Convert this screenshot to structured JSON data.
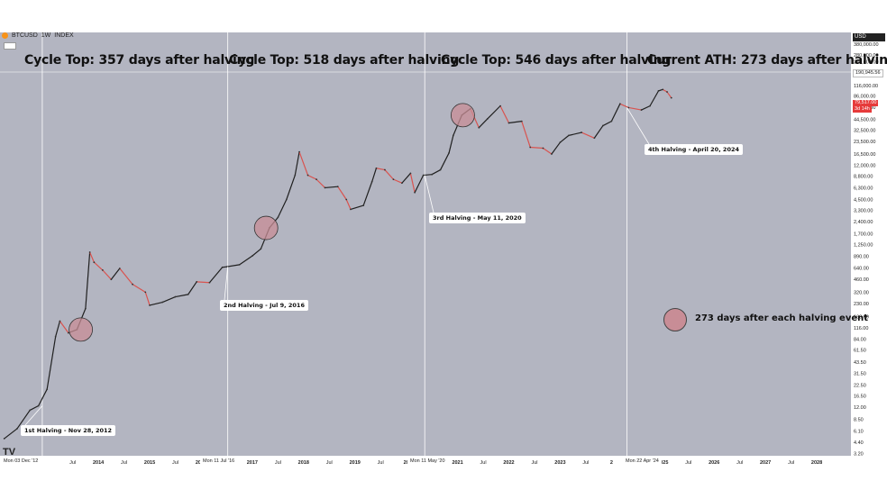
{
  "header": {
    "ticker": "BTCUSD",
    "interval": "1W",
    "type": "INDEX",
    "currency": "USD"
  },
  "titles": [
    "Cycle Top: 357 days after halving",
    "Cycle Top: 518 days after halving",
    "Cycle Top: 546 days after halving",
    "Current ATH: 273 days after halving"
  ],
  "halving_labels": [
    "1st Halving - Nov 28, 2012",
    "2nd Halving - Jul 9, 2016",
    "3rd Halving - May 11, 2020",
    "4th Halving - April 20, 2024"
  ],
  "legend": {
    "text": "273 days after each halving event",
    "color": "#c88d96"
  },
  "x_badges": [
    "Mon 03 Dec '12",
    "Mon 11 Jul '16",
    "Mon 11 May '20",
    "Mon 22 Apr '24"
  ],
  "price_tags": {
    "current_price": "79,517.00",
    "countdown": "3d 14h",
    "ath_marker": "190,945.56"
  },
  "colors": {
    "background": "#b3b5c1",
    "up": "#1f1f1f",
    "down": "#d9534f",
    "circle_fill": "#c88d96"
  },
  "chart_data": {
    "type": "line",
    "title": "",
    "xlabel": "",
    "ylabel": "",
    "y_scale": "log",
    "ylim": [
      3.0,
      530000
    ],
    "xlim": [
      "2012-02",
      "2028-09"
    ],
    "y_ticks": [
      "530,000.00",
      "380,000.00",
      "280,000.00",
      "230,000.00",
      "160,000.00",
      "116,000.00",
      "86,000.00",
      "62,500.00",
      "44,500.00",
      "32,500.00",
      "23,500.00",
      "16,500.00",
      "12,000.00",
      "8,800.00",
      "6,300.00",
      "4,500.00",
      "3,300.00",
      "2,400.00",
      "1,700.00",
      "1,250.00",
      "890.00",
      "640.00",
      "460.00",
      "320.00",
      "230.00",
      "160.00",
      "116.00",
      "84.00",
      "61.50",
      "43.50",
      "31.50",
      "22.50",
      "16.50",
      "12.00",
      "8.50",
      "6.10",
      "4.40",
      "3.20"
    ],
    "x_ticks": [
      "Jul",
      "2014",
      "Jul",
      "2015",
      "Jul",
      "2016",
      "2017",
      "Jul",
      "2018",
      "Jul",
      "2019",
      "Jul",
      "20",
      "2021",
      "Jul",
      "2022",
      "Jul",
      "2023",
      "Jul",
      "2",
      "Jul",
      "2025",
      "Jul",
      "2026",
      "Jul",
      "2027",
      "Jul",
      "2028"
    ],
    "series": [
      {
        "x": [
          "2012-03",
          "2012-06",
          "2012-09",
          "2012-11",
          "2013-01",
          "2013-03",
          "2013-04",
          "2013-06",
          "2013-08",
          "2013-10",
          "2013-11",
          "2013-12",
          "2014-02",
          "2014-04",
          "2014-06",
          "2014-09",
          "2014-12",
          "2015-01",
          "2015-04",
          "2015-07",
          "2015-10",
          "2015-12",
          "2016-03",
          "2016-06",
          "2016-07",
          "2016-10",
          "2017-01",
          "2017-03",
          "2017-05",
          "2017-07",
          "2017-09",
          "2017-11",
          "2017-12",
          "2018-02",
          "2018-04",
          "2018-06",
          "2018-09",
          "2018-11",
          "2018-12",
          "2019-03",
          "2019-05",
          "2019-06",
          "2019-08",
          "2019-10",
          "2019-12",
          "2020-02",
          "2020-03",
          "2020-05",
          "2020-07",
          "2020-09",
          "2020-11",
          "2020-12",
          "2021-02",
          "2021-04",
          "2021-06",
          "2021-08",
          "2021-11",
          "2022-01",
          "2022-04",
          "2022-06",
          "2022-09",
          "2022-11",
          "2023-01",
          "2023-03",
          "2023-06",
          "2023-09",
          "2023-11",
          "2024-01",
          "2024-03",
          "2024-05",
          "2024-08",
          "2024-10",
          "2024-12",
          "2025-01",
          "2025-02",
          "2025-03"
        ],
        "values": [
          4.9,
          6.5,
          11,
          12.5,
          20,
          90,
          140,
          100,
          110,
          200,
          1000,
          750,
          600,
          460,
          630,
          400,
          320,
          220,
          240,
          280,
          300,
          430,
          420,
          650,
          660,
          700,
          900,
          1100,
          2000,
          2700,
          4500,
          9000,
          17500,
          9000,
          8000,
          6300,
          6500,
          4500,
          3400,
          3800,
          7500,
          11000,
          10500,
          8000,
          7200,
          9500,
          5500,
          9000,
          9200,
          10500,
          17000,
          28000,
          50000,
          60000,
          35000,
          45000,
          65000,
          40000,
          42000,
          20000,
          19500,
          16500,
          23000,
          28000,
          30500,
          26000,
          37000,
          42000,
          69000,
          62000,
          58000,
          65000,
          100000,
          104000,
          97000,
          82000
        ]
      }
    ],
    "halving_dates": [
      "2012-11-28",
      "2016-07-09",
      "2020-05-11",
      "2024-04-20"
    ],
    "markers_273_days": [
      "2013-08-28",
      "2017-04-08",
      "2021-02-08",
      "2025-01-18"
    ]
  }
}
